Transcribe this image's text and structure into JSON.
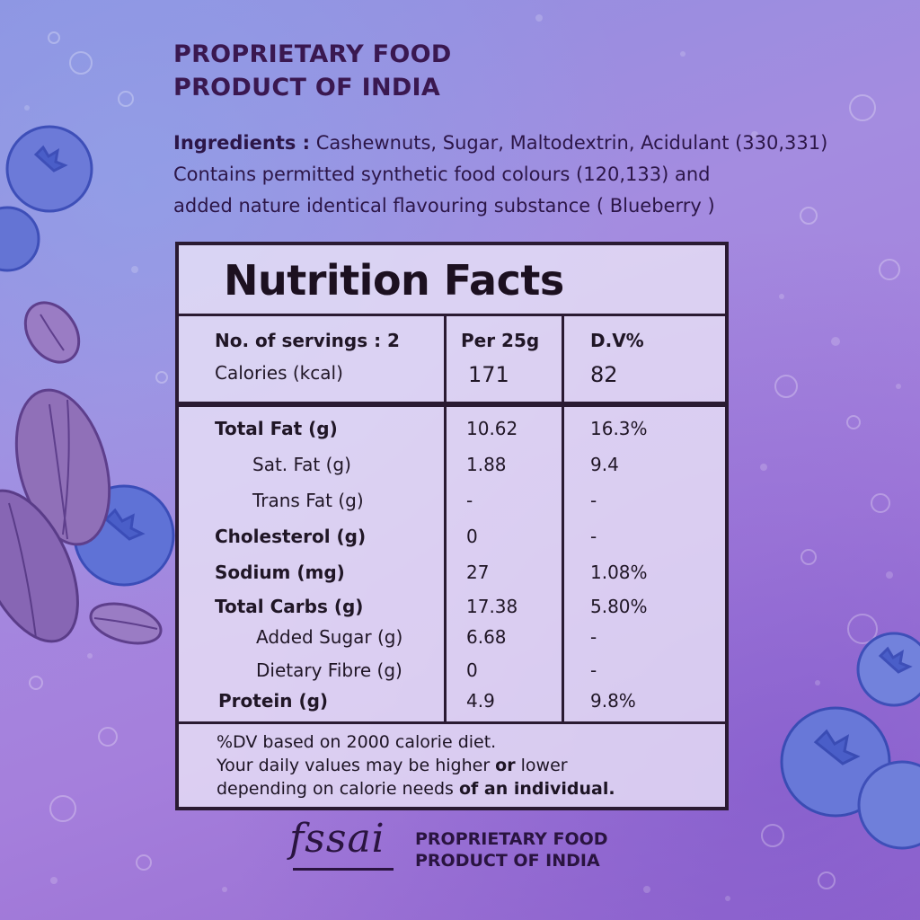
{
  "heading": {
    "line1": "PROPRIETARY FOOD",
    "line2": "PRODUCT OF INDIA"
  },
  "ingredients": {
    "label": "Ingredients :",
    "line1": " Cashewnuts, Sugar, Maltodextrin, Acidulant (330,331)",
    "line2": "Contains permitted synthetic food colours (120,133) and",
    "line3": "added nature identical flavouring substance ( Blueberry )"
  },
  "nutrition": {
    "title": "Nutrition Facts",
    "servings_label": "No. of servings : 2",
    "per_header": "Per 25g",
    "dv_header": "D.V%",
    "calories_label": "Calories (kcal)",
    "calories_value": "171",
    "calories_dv": "82",
    "rows": [
      {
        "label": "Total Fat (g)",
        "value": "10.62",
        "dv": "16.3%"
      },
      {
        "label": "Sat. Fat (g)",
        "value": "1.88",
        "dv": "9.4"
      },
      {
        "label": "Trans Fat (g)",
        "value": "-",
        "dv": "-"
      },
      {
        "label": "Cholesterol (g)",
        "value": "0",
        "dv": "-"
      },
      {
        "label": "Sodium (mg)",
        "value": "27",
        "dv": "1.08%"
      },
      {
        "label": "Total Carbs (g)",
        "value": "17.38",
        "dv": "5.80%"
      },
      {
        "label": "Added Sugar (g)",
        "value": "6.68",
        "dv": "-"
      },
      {
        "label": "Dietary Fibre (g)",
        "value": "0",
        "dv": "-"
      },
      {
        "label": "Protein (g)",
        "value": "4.9",
        "dv": "9.8%"
      }
    ],
    "note_line1": "%DV based on 2000 calorie diet.",
    "note_line2_a": "Your daily values may be higher ",
    "note_line2_b": "or",
    "note_line2_c": " lower",
    "note_line3_a": "depending on calorie needs ",
    "note_line3_b": "of an individual."
  },
  "footer": {
    "logo_text": "fssai",
    "line1": "PROPRIETARY FOOD",
    "line2": "PRODUCT OF INDIA"
  },
  "decor": {
    "icons": [
      "blueberry-icon",
      "almond-icon",
      "leaf-icon"
    ],
    "colors": {
      "blueberry": "#4a5ec8",
      "almond": "#7a5aa8",
      "text": "#2a1446"
    }
  }
}
